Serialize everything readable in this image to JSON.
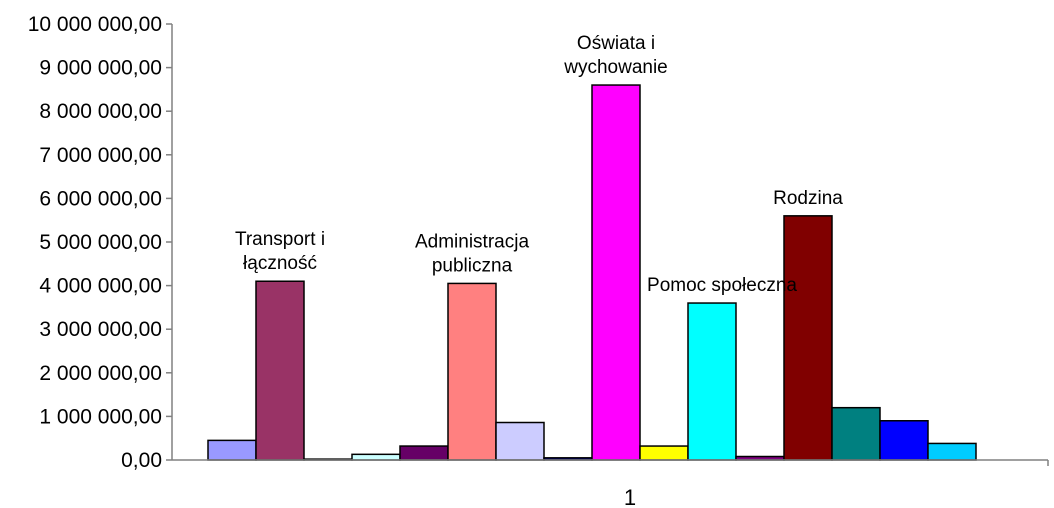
{
  "chart_data": {
    "type": "bar",
    "categories": [
      "1"
    ],
    "ylim": [
      0,
      10000000
    ],
    "yticks": [
      0,
      1000000,
      2000000,
      3000000,
      4000000,
      5000000,
      6000000,
      7000000,
      8000000,
      9000000,
      10000000
    ],
    "ytick_labels": [
      "0,00",
      "1 000 000,00",
      "2 000 000,00",
      "3 000 000,00",
      "4 000 000,00",
      "5 000 000,00",
      "6 000 000,00",
      "7 000 000,00",
      "8 000 000,00",
      "9 000 000,00",
      "10 000 000,00"
    ],
    "grid": false,
    "legend": "none",
    "series": [
      {
        "values": [
          450000
        ],
        "color": "#9999ff"
      },
      {
        "values": [
          4100000
        ],
        "color": "#993366"
      },
      {
        "values": [
          20000
        ],
        "color": "#ffffcc"
      },
      {
        "values": [
          130000
        ],
        "color": "#ccffff"
      },
      {
        "values": [
          320000
        ],
        "color": "#660066"
      },
      {
        "values": [
          4050000
        ],
        "color": "#ff8080"
      },
      {
        "values": [
          860000
        ],
        "color": "#ccccff"
      },
      {
        "values": [
          50000
        ],
        "color": "#000080"
      },
      {
        "values": [
          8600000
        ],
        "color": "#ff00ff"
      },
      {
        "values": [
          320000
        ],
        "color": "#ffff00"
      },
      {
        "values": [
          3600000
        ],
        "color": "#00ffff"
      },
      {
        "values": [
          80000
        ],
        "color": "#800080"
      },
      {
        "values": [
          5600000
        ],
        "color": "#800000"
      },
      {
        "values": [
          1200000
        ],
        "color": "#008080"
      },
      {
        "values": [
          900000
        ],
        "color": "#0000ff"
      },
      {
        "values": [
          380000
        ],
        "color": "#00ccff"
      }
    ],
    "annotations": [
      {
        "lines": [
          "Transport i",
          "łączność"
        ],
        "series_index": 1
      },
      {
        "lines": [
          "Administracja",
          "publiczna"
        ],
        "series_index": 5
      },
      {
        "lines": [
          "Oświata i",
          "wychowanie"
        ],
        "series_index": 8
      },
      {
        "lines": [
          "Pomoc społeczna"
        ],
        "series_index": 10
      },
      {
        "lines": [
          "Rodzina"
        ],
        "series_index": 12
      }
    ]
  }
}
